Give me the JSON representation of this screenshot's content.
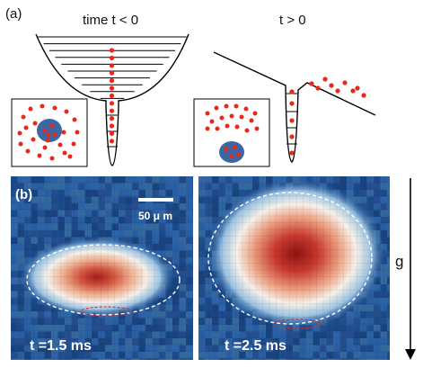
{
  "panel_a": {
    "label": "(a)",
    "left_title": "time  t < 0",
    "right_title": "t > 0"
  },
  "panel_b": {
    "label": "(b)",
    "scale_bar_label": "50 μ m",
    "left_time_label": "t =1.5 ms",
    "right_time_label": "t =2.5 ms",
    "gravity_label": "g"
  },
  "colors": {
    "dot_red": "#e8281c",
    "bg_blue": "#20508f",
    "core_red": "#b01a1a",
    "ellipse_dash": "#ffffff",
    "small_dash": "#d03030"
  }
}
